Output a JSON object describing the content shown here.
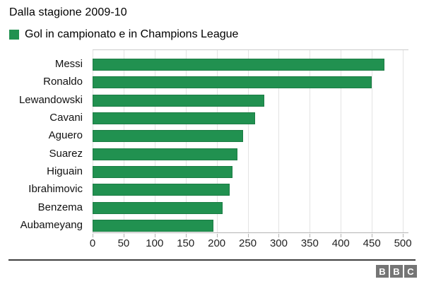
{
  "title": "Dalla stagione 2009-10",
  "legend": {
    "label": "Gol in campionato e in Champions League",
    "color": "#219150"
  },
  "chart_data": {
    "type": "bar",
    "orientation": "horizontal",
    "title": "Dalla stagione 2009-10",
    "series_name": "Gol in campionato e in Champions League",
    "categories": [
      "Messi",
      "Ronaldo",
      "Lewandowski",
      "Cavani",
      "Aguero",
      "Suarez",
      "Higuain",
      "Ibrahimovic",
      "Benzema",
      "Aubameyang"
    ],
    "values": [
      470,
      450,
      277,
      262,
      242,
      234,
      226,
      221,
      209,
      195
    ],
    "bar_color": "#219150",
    "xlabel": "",
    "ylabel": "",
    "xlim": [
      0,
      500
    ],
    "x_ticks": [
      0,
      50,
      100,
      150,
      200,
      250,
      300,
      350,
      400,
      450,
      500
    ],
    "grid": true,
    "legend_position": "top-left"
  },
  "footer": {
    "logo_letters": [
      "B",
      "B",
      "C"
    ]
  }
}
